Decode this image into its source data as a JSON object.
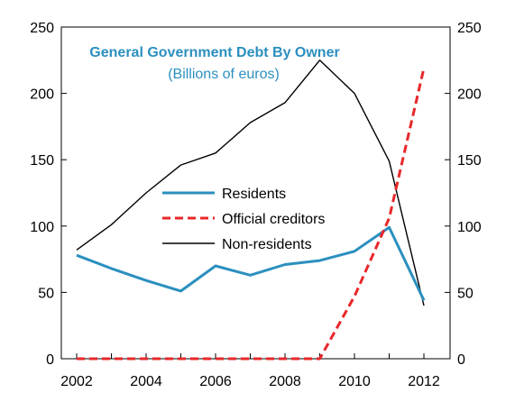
{
  "chart_data": {
    "type": "line",
    "title": "General Government Debt By Owner",
    "subtitle": "(Billions of euros)",
    "xlabel": "",
    "ylabel": "",
    "x": [
      2002,
      2003,
      2004,
      2005,
      2006,
      2007,
      2008,
      2009,
      2010,
      2011,
      2012
    ],
    "x_ticks": [
      "2002",
      "2004",
      "2006",
      "2008",
      "2010",
      "2012"
    ],
    "ylim": [
      0,
      250
    ],
    "y_ticks": [
      "0",
      "50",
      "100",
      "150",
      "200",
      "250"
    ],
    "y2_ticks": [
      "0",
      "50",
      "100",
      "150",
      "200",
      "250"
    ],
    "grid": false,
    "legend_position": "center",
    "series": [
      {
        "name": "Residents",
        "color": "#2b8fbf",
        "style": "solid",
        "values": [
          78,
          68,
          59,
          51,
          70,
          63,
          71,
          74,
          81,
          99,
          44
        ]
      },
      {
        "name": "Official creditors",
        "color": "#e8272a",
        "style": "dashed",
        "values": [
          0,
          0,
          0,
          0,
          0,
          0,
          0,
          0,
          47,
          106,
          219
        ]
      },
      {
        "name": "Non-residents",
        "color": "#000000",
        "style": "solid",
        "values": [
          82,
          101,
          125,
          146,
          155,
          178,
          193,
          225,
          200,
          149,
          40
        ]
      }
    ]
  }
}
